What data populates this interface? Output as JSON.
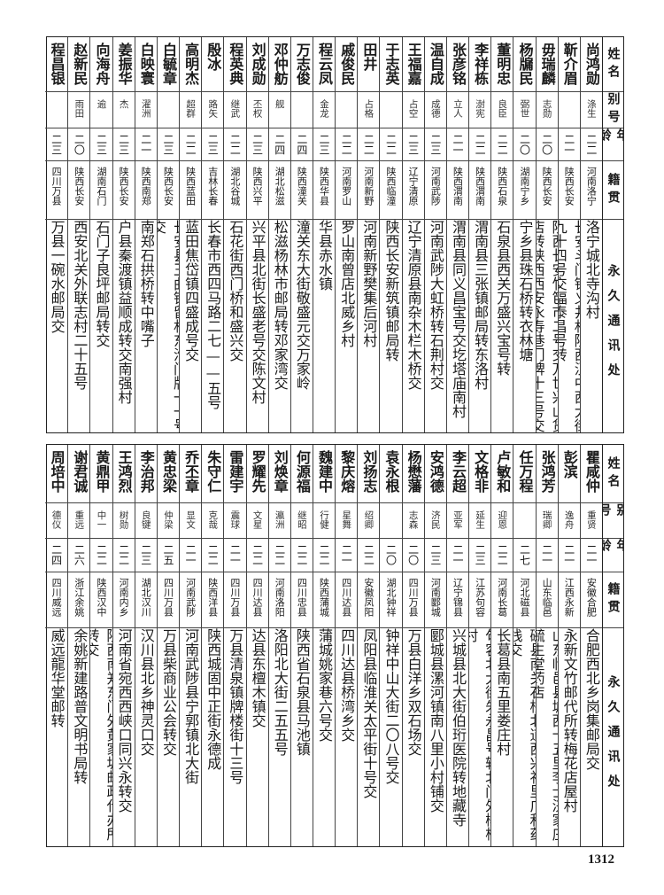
{
  "header": {
    "name": "姓名",
    "alias": "别号",
    "age": "年龄",
    "origin": "籍贯",
    "address": "永久通讯处"
  },
  "top_table": [
    {
      "name": "尚鸿勋",
      "alias": "涤生",
      "age": "二二",
      "origin": "河南洛宁",
      "address": "洛宁城北寺沟村"
    },
    {
      "name": "靳介眉",
      "alias": "",
      "age": "二一",
      "origin": "陕西长安",
      "address": "长安斗门镇义井村陕西汉中西大街九十四号交福泰昌号转"
    },
    {
      "name": "毋瑞麟",
      "alias": "志勋",
      "age": "二〇",
      "origin": "陕西长安",
      "address": "陕西长安竹笆市二号交万世兴山货店转陕西西安永寿巷门牌十三号交"
    },
    {
      "name": "杨牖民",
      "alias": "弼世",
      "age": "二〇",
      "origin": "湖南宁乡",
      "address": "宁乡县珠石桥转衣林塘"
    },
    {
      "name": "董明忠",
      "alias": "良臣",
      "age": "二二",
      "origin": "陕西石泉",
      "address": "石泉县西关万盛兴宝号转"
    },
    {
      "name": "李祥栋",
      "alias": "澍宪",
      "age": "二二",
      "origin": "陕西渭南",
      "address": "渭南县三张镇邮局转东洛村"
    },
    {
      "name": "张彦铭",
      "alias": "立人",
      "age": "二一",
      "origin": "陕西渭南",
      "address": "渭南县同义昌宝号交圪塔庙南村"
    },
    {
      "name": "温自成",
      "alias": "成德",
      "age": "二三",
      "origin": "河南武陟",
      "address": "河南武陟大虹桥转石荆村交"
    },
    {
      "name": "王福嘉",
      "alias": "占空",
      "age": "二三",
      "origin": "辽宁清原",
      "address": "辽宁清原县南杂木栏木桥交"
    },
    {
      "name": "于志英",
      "alias": "",
      "age": "二二",
      "origin": "陕西临潼",
      "address": "陕西长安新筑镇邮局转"
    },
    {
      "name": "田井",
      "alias": "占格",
      "age": "二二",
      "origin": "河南新野",
      "address": "河南新野樊集后河村"
    },
    {
      "name": "戚俊民",
      "alias": "",
      "age": "二二",
      "origin": "河南罗山",
      "address": "罗山南曾店北威乡村"
    },
    {
      "name": "程云凤",
      "alias": "金龙",
      "age": "二三",
      "origin": "陕西华县",
      "address": "华县赤水镇"
    },
    {
      "name": "万志俊",
      "alias": "",
      "age": "二四",
      "origin": "陕西潼关",
      "address": "潼关东大街敬盛元交万家岭"
    },
    {
      "name": "邓仲舫",
      "alias": "舰",
      "age": "二四",
      "origin": "湖北松滋",
      "address": "松滋杨林市邮局转邓家湾交"
    },
    {
      "name": "刘成勋",
      "alias": "丕权",
      "age": "二三",
      "origin": "陕西兴平",
      "address": "兴平县北街长盛老号交陈文村"
    },
    {
      "name": "程英典",
      "alias": "继武",
      "age": "二二",
      "origin": "湖北谷城",
      "address": "石花街西门桥和盛兴交"
    },
    {
      "name": "殷冰",
      "alias": "路矢",
      "age": "二三",
      "origin": "吉林长春",
      "address": "长春市西四马路二七——五号"
    },
    {
      "name": "高明杰",
      "alias": "超群",
      "age": "二二",
      "origin": "陕西蓝田",
      "address": "蓝田焦岱镇四盛成号交"
    },
    {
      "name": "白毓章",
      "alias": "",
      "age": "二三",
      "origin": "陕西长安",
      "address": "长安县王曲镇留村东沟门牌一一号交"
    },
    {
      "name": "白映寰",
      "alias": "濯洲",
      "age": "二一",
      "origin": "陕西南郑",
      "address": "南郑石拱桥转中嘴子"
    },
    {
      "name": "姜振华",
      "alias": "杰",
      "age": "二三",
      "origin": "陕西长安",
      "address": "户县秦渡镇益顺成转交南强村"
    },
    {
      "name": "向海舟",
      "alias": "逾",
      "age": "二三",
      "origin": "湖南石门",
      "address": "石门子良坪邮局转交"
    },
    {
      "name": "赵新民",
      "alias": "雨田",
      "age": "二〇",
      "origin": "陕西长安",
      "address": "西安北关外联志村二十五号"
    },
    {
      "name": "程昌银",
      "alias": "",
      "age": "二三",
      "origin": "四川万县",
      "address": "万县一碗水邮局交"
    }
  ],
  "bottom_table": [
    {
      "name": "瞿咸仲",
      "alias": "重贤",
      "age": "二一",
      "origin": "安徽合肥",
      "address": "合肥西北乡岗集邮局交"
    },
    {
      "name": "彭滨",
      "alias": "逸舟",
      "age": "二一",
      "origin": "江西永新",
      "address": "永新文竹邮代所转梅花店屋村"
    },
    {
      "name": "张鸿芳",
      "alias": "瑞卿",
      "age": "二一",
      "origin": "山东临邑",
      "address": "山东临邑县城西十五里李士济家庄毓生堂药店"
    },
    {
      "name": "任万程",
      "alias": "",
      "age": "二七",
      "origin": "河北磁县",
      "address": "磁县南关石桥北道西兴礼里广和药栈交"
    },
    {
      "name": "卢敏和",
      "alias": "迎恩",
      "age": "二二",
      "origin": "河南长葛",
      "address": "长葛县南五里娄庄村"
    },
    {
      "name": "文格非",
      "alias": "延生",
      "age": "二三",
      "origin": "江苏句容",
      "address": "句容北大街朱永昌号转北门外柳柯村"
    },
    {
      "name": "李云超",
      "alias": "亚军",
      "age": "二一",
      "origin": "辽宁锦县",
      "address": "兴城县北大街伯珩医院转地藏寺"
    },
    {
      "name": "安鸿德",
      "alias": "济民",
      "age": "二三",
      "origin": "河南郾城",
      "address": "郾城县漯河镇南八里小村铺交"
    },
    {
      "name": "杨懋藩",
      "alias": "志森",
      "age": "二〇",
      "origin": "四川万县",
      "address": "万县白洋乡双石场交"
    },
    {
      "name": "袁永根",
      "alias": "",
      "age": "二〇",
      "origin": "湖北钟祥",
      "address": "钟祥中山大街二〇八号交"
    },
    {
      "name": "刘扬志",
      "alias": "绍卿",
      "age": "二二",
      "origin": "安徽凤阳",
      "address": "凤阳县临淮关太平街十号交"
    },
    {
      "name": "黎庆熔",
      "alias": "星舞",
      "age": "二一",
      "origin": "四川达县",
      "address": "四川达县桥湾乡交"
    },
    {
      "name": "魏建中",
      "alias": "行健",
      "age": "二二",
      "origin": "陕西蒲城",
      "address": "蒲城姚家巷六号交"
    },
    {
      "name": "何源福",
      "alias": "继昭",
      "age": "二二",
      "origin": "四川忠县",
      "address": "陕西省石泉县马池镇"
    },
    {
      "name": "刘焕章",
      "alias": "瀛洲",
      "age": "二二",
      "origin": "河南洛阳",
      "address": "洛阳北大街二五五号"
    },
    {
      "name": "罗耀先",
      "alias": "文星",
      "age": "二二",
      "origin": "四川达县",
      "address": "达县东檀木镇交"
    },
    {
      "name": "雷建宇",
      "alias": "震球",
      "age": "二一",
      "origin": "四川万县",
      "address": "万县清泉镇牌楼街十三号"
    },
    {
      "name": "朱守仁",
      "alias": "克哉",
      "age": "二二",
      "origin": "陕西洋县",
      "address": "陕西城固中正街永德成"
    },
    {
      "name": "乔丕章",
      "alias": "显文",
      "age": "二一",
      "origin": "河南武陟",
      "address": "河南武陟县宁郭镇北大街"
    },
    {
      "name": "黄忠梁",
      "alias": "仲梁",
      "age": "二五",
      "origin": "四川万县",
      "address": "万县柴商业公会转交"
    },
    {
      "name": "李治邦",
      "alias": "良键",
      "age": "二三",
      "origin": "湖北汉川",
      "address": "汉川县北乡神灵口交"
    },
    {
      "name": "王鸿烈",
      "alias": "树勋",
      "age": "二二",
      "origin": "河南内乡",
      "address": "河南省宛西西峡口同兴永转交"
    },
    {
      "name": "黄鼎甲",
      "alias": "中一",
      "age": "二二",
      "origin": "陕西汉中",
      "address": "陕西南郑东门外黄家坡邮政代办所转交"
    },
    {
      "name": "谢君诚",
      "alias": "重远",
      "age": "二六",
      "origin": "浙江余姚",
      "address": "余姚新建路普文明书局转"
    },
    {
      "name": "周培中",
      "alias": "德仪",
      "age": "二四",
      "origin": "四川威远",
      "address": "威远龍华堂邮转"
    }
  ],
  "page_number": "1312"
}
